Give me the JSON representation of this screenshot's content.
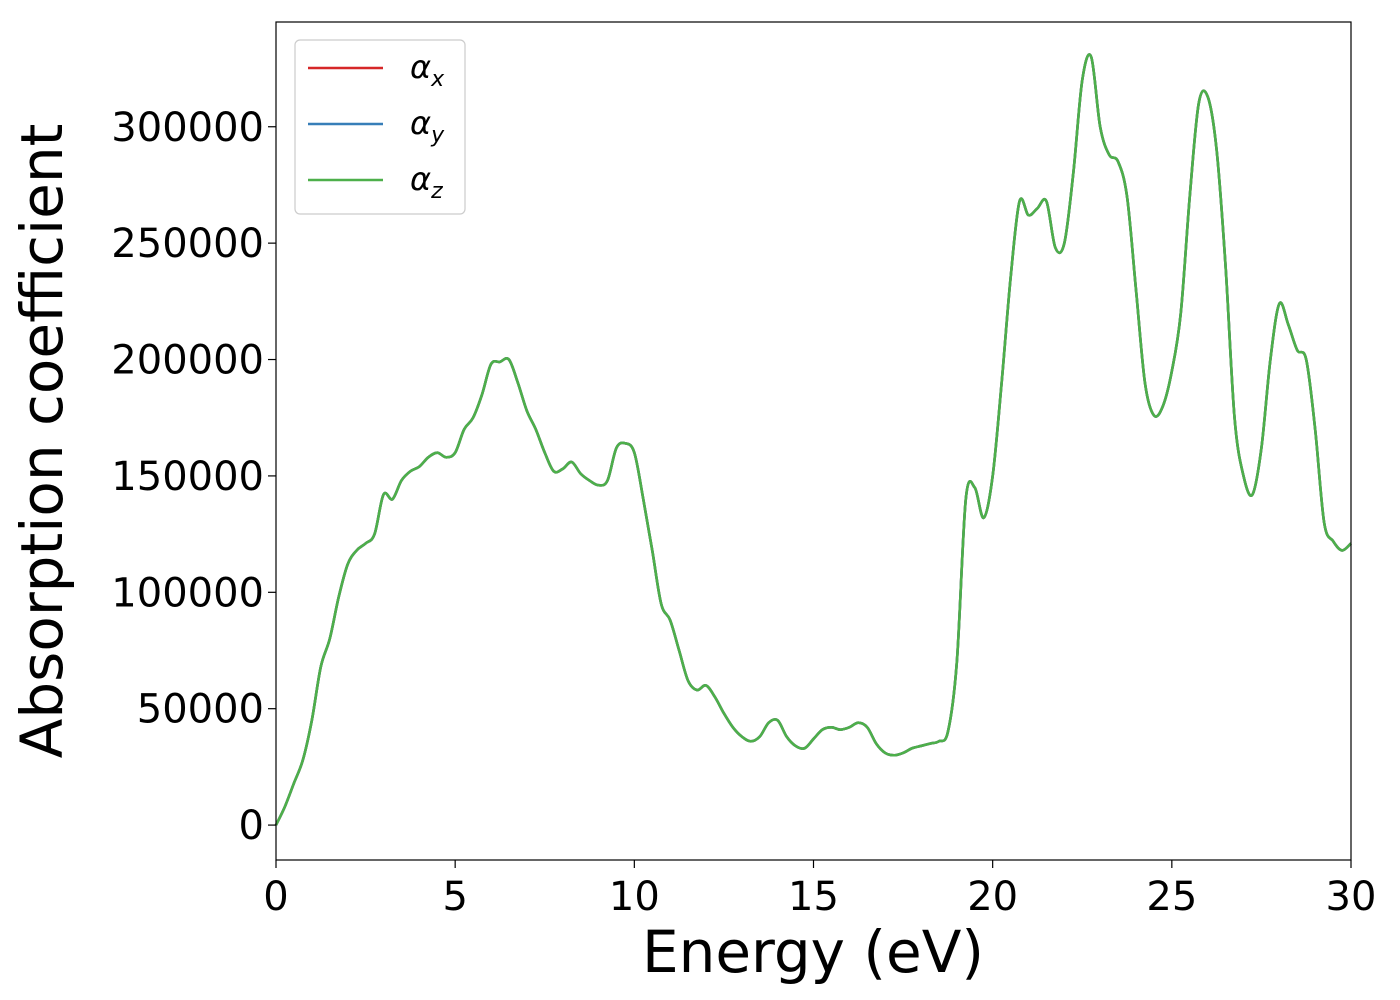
{
  "chart_data": {
    "type": "line",
    "title": "",
    "xlabel": "Energy (eV)",
    "ylabel": "Absorption coefficient",
    "xlim": [
      0,
      30
    ],
    "ylim": [
      -15000,
      345000
    ],
    "xticks": [
      0,
      5,
      10,
      15,
      20,
      25,
      30
    ],
    "yticks": [
      0,
      50000,
      100000,
      150000,
      200000,
      250000,
      300000
    ],
    "grid": false,
    "legend_position": "top-left",
    "x": [
      0,
      0.25,
      0.5,
      0.75,
      1.0,
      1.25,
      1.5,
      1.75,
      2.0,
      2.25,
      2.5,
      2.75,
      3.0,
      3.25,
      3.5,
      3.75,
      4.0,
      4.25,
      4.5,
      4.75,
      5.0,
      5.25,
      5.5,
      5.75,
      6.0,
      6.25,
      6.5,
      6.75,
      7.0,
      7.25,
      7.5,
      7.75,
      8.0,
      8.25,
      8.5,
      8.75,
      9.0,
      9.25,
      9.5,
      9.75,
      10.0,
      10.25,
      10.5,
      10.75,
      11.0,
      11.25,
      11.5,
      11.75,
      12.0,
      12.25,
      12.5,
      12.75,
      13.0,
      13.25,
      13.5,
      13.75,
      14.0,
      14.25,
      14.5,
      14.75,
      15.0,
      15.25,
      15.5,
      15.75,
      16.0,
      16.25,
      16.5,
      16.75,
      17.0,
      17.25,
      17.5,
      17.75,
      18.0,
      18.25,
      18.5,
      18.75,
      19.0,
      19.25,
      19.5,
      19.75,
      20.0,
      20.25,
      20.5,
      20.75,
      21.0,
      21.25,
      21.5,
      21.75,
      22.0,
      22.25,
      22.5,
      22.75,
      23.0,
      23.25,
      23.5,
      23.75,
      24.0,
      24.25,
      24.5,
      24.75,
      25.0,
      25.25,
      25.5,
      25.75,
      26.0,
      26.25,
      26.5,
      26.75,
      27.0,
      27.25,
      27.5,
      27.75,
      28.0,
      28.25,
      28.5,
      28.75,
      29.0,
      29.25,
      29.5,
      29.75,
      30.0
    ],
    "series": [
      {
        "name": "α_x",
        "name_base": "α",
        "name_sub": "x",
        "color": "#d62728",
        "values": [
          0,
          8000,
          18000,
          28000,
          45000,
          68000,
          80000,
          98000,
          112000,
          118000,
          121000,
          125000,
          142000,
          140000,
          148000,
          152000,
          154000,
          158000,
          160000,
          158000,
          160000,
          170000,
          175000,
          185000,
          198000,
          199000,
          200000,
          190000,
          178000,
          170000,
          160000,
          152000,
          153000,
          156000,
          151000,
          148000,
          146000,
          148000,
          162000,
          164000,
          160000,
          140000,
          118000,
          95000,
          88000,
          75000,
          62000,
          58000,
          60000,
          55000,
          48000,
          42000,
          38000,
          36000,
          38000,
          44000,
          45000,
          38000,
          34000,
          33000,
          37000,
          41000,
          42000,
          41000,
          42000,
          44000,
          42000,
          35000,
          31000,
          30000,
          31000,
          33000,
          34000,
          35000,
          36000,
          40000,
          70000,
          140000,
          145000,
          132000,
          150000,
          190000,
          235000,
          268000,
          262000,
          265000,
          268000,
          248000,
          250000,
          280000,
          320000,
          330000,
          300000,
          288000,
          285000,
          270000,
          230000,
          190000,
          176000,
          180000,
          195000,
          220000,
          270000,
          310000,
          313000,
          290000,
          240000,
          175000,
          150000,
          142000,
          162000,
          200000,
          224000,
          215000,
          204000,
          200000,
          170000,
          130000,
          122000,
          118000,
          121000
        ]
      },
      {
        "name": "α_y",
        "name_base": "α",
        "name_sub": "y",
        "color": "#377eb8",
        "values": [
          0,
          8000,
          18000,
          28000,
          45000,
          68000,
          80000,
          98000,
          112000,
          118000,
          121000,
          125000,
          142000,
          140000,
          148000,
          152000,
          154000,
          158000,
          160000,
          158000,
          160000,
          170000,
          175000,
          185000,
          198000,
          199000,
          200000,
          190000,
          178000,
          170000,
          160000,
          152000,
          153000,
          156000,
          151000,
          148000,
          146000,
          148000,
          162000,
          164000,
          160000,
          140000,
          118000,
          95000,
          88000,
          75000,
          62000,
          58000,
          60000,
          55000,
          48000,
          42000,
          38000,
          36000,
          38000,
          44000,
          45000,
          38000,
          34000,
          33000,
          37000,
          41000,
          42000,
          41000,
          42000,
          44000,
          42000,
          35000,
          31000,
          30000,
          31000,
          33000,
          34000,
          35000,
          36000,
          40000,
          70000,
          140000,
          145000,
          132000,
          150000,
          190000,
          235000,
          268000,
          262000,
          265000,
          268000,
          248000,
          250000,
          280000,
          320000,
          330000,
          300000,
          288000,
          285000,
          270000,
          230000,
          190000,
          176000,
          180000,
          195000,
          220000,
          270000,
          310000,
          313000,
          290000,
          240000,
          175000,
          150000,
          142000,
          162000,
          200000,
          224000,
          215000,
          204000,
          200000,
          170000,
          130000,
          122000,
          118000,
          121000
        ]
      },
      {
        "name": "α_z",
        "name_base": "α",
        "name_sub": "z",
        "color": "#4daf4a",
        "values": [
          0,
          8000,
          18000,
          28000,
          45000,
          68000,
          80000,
          98000,
          112000,
          118000,
          121000,
          125000,
          142000,
          140000,
          148000,
          152000,
          154000,
          158000,
          160000,
          158000,
          160000,
          170000,
          175000,
          185000,
          198000,
          199000,
          200000,
          190000,
          178000,
          170000,
          160000,
          152000,
          153000,
          156000,
          151000,
          148000,
          146000,
          148000,
          162000,
          164000,
          160000,
          140000,
          118000,
          95000,
          88000,
          75000,
          62000,
          58000,
          60000,
          55000,
          48000,
          42000,
          38000,
          36000,
          38000,
          44000,
          45000,
          38000,
          34000,
          33000,
          37000,
          41000,
          42000,
          41000,
          42000,
          44000,
          42000,
          35000,
          31000,
          30000,
          31000,
          33000,
          34000,
          35000,
          36000,
          40000,
          70000,
          140000,
          145000,
          132000,
          150000,
          190000,
          235000,
          268000,
          262000,
          265000,
          268000,
          248000,
          250000,
          280000,
          320000,
          330000,
          300000,
          288000,
          285000,
          270000,
          230000,
          190000,
          176000,
          180000,
          195000,
          220000,
          270000,
          310000,
          313000,
          290000,
          240000,
          175000,
          150000,
          142000,
          162000,
          200000,
          224000,
          215000,
          204000,
          200000,
          170000,
          130000,
          122000,
          118000,
          121000
        ]
      }
    ]
  }
}
